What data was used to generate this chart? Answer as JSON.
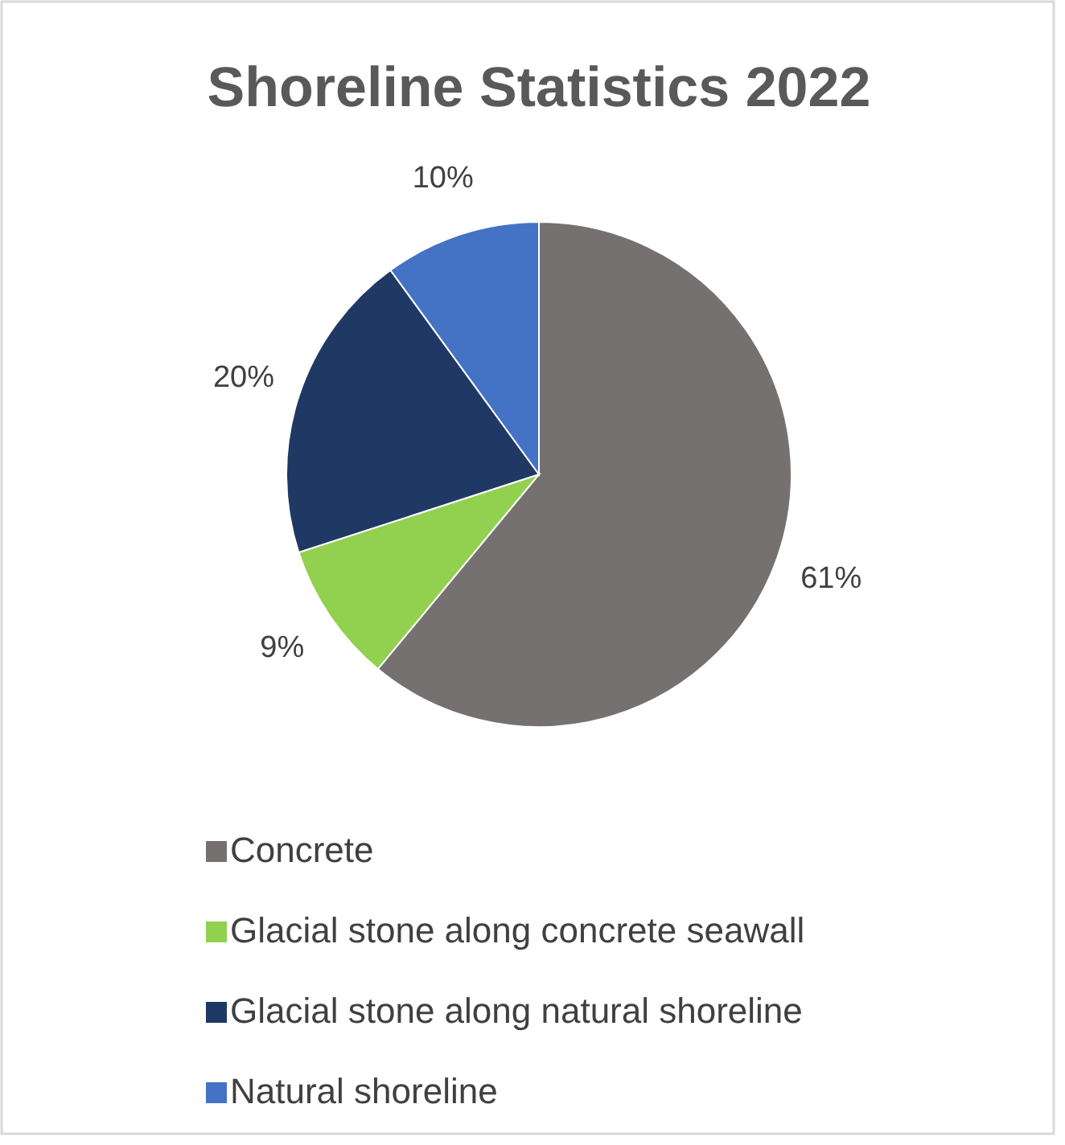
{
  "chart_data": {
    "type": "pie",
    "title": "Shoreline Statistics 2022",
    "categories": [
      "Concrete",
      "Glacial stone along concrete seawall",
      "Glacial stone along natural shoreline",
      "Natural shoreline"
    ],
    "values": [
      61,
      9,
      20,
      10
    ],
    "colors": [
      "#767171",
      "#92d050",
      "#203864",
      "#4472c4"
    ],
    "value_labels": [
      "61%",
      "9%",
      "20%",
      "10%"
    ],
    "legend": "bottom"
  }
}
